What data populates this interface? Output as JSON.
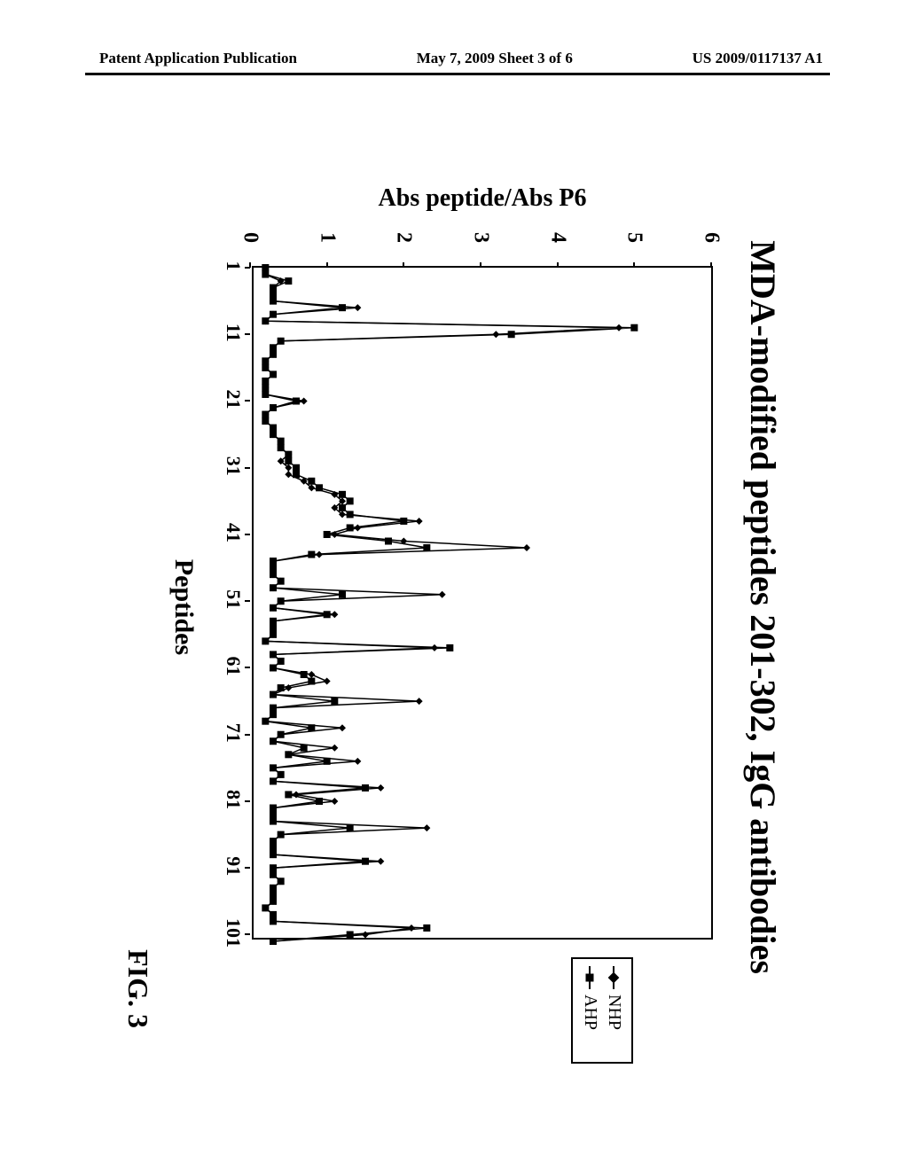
{
  "header": {
    "left": "Patent Application Publication",
    "center": "May 7, 2009  Sheet 3 of 6",
    "right": "US 2009/0117137 A1"
  },
  "figure_caption": "FIG. 3",
  "chart": {
    "type": "line",
    "title": "MDA-modified peptides 201-302, IgG antibodies",
    "x_axis": {
      "label": "Peptides",
      "ticks": [
        1,
        11,
        21,
        31,
        41,
        51,
        61,
        71,
        81,
        91,
        101
      ],
      "min": 1,
      "max": 102
    },
    "y_axis": {
      "label": "Abs peptide/Abs P6",
      "ticks": [
        0,
        1,
        2,
        3,
        4,
        5,
        6
      ],
      "min": 0,
      "max": 6
    },
    "background_color": "#ffffff",
    "axis_color": "#000000",
    "line_width": 1.5,
    "marker_size": 4,
    "legend": {
      "position": "right",
      "items": [
        {
          "label": "NHP",
          "marker": "diamond",
          "color": "#000000"
        },
        {
          "label": "AHP",
          "marker": "square",
          "color": "#000000"
        }
      ]
    },
    "series": [
      {
        "name": "NHP",
        "marker": "diamond",
        "color": "#000000",
        "values": [
          0.2,
          0.2,
          0.4,
          0.3,
          0.3,
          0.3,
          1.4,
          0.3,
          0.2,
          4.8,
          3.2,
          0.4,
          0.3,
          0.3,
          0.2,
          0.2,
          0.3,
          0.2,
          0.2,
          0.2,
          0.7,
          0.3,
          0.2,
          0.2,
          0.3,
          0.3,
          0.4,
          0.4,
          0.5,
          0.4,
          0.5,
          0.5,
          0.7,
          0.8,
          1.1,
          1.2,
          1.1,
          1.2,
          2.2,
          1.4,
          1.1,
          2.0,
          3.6,
          0.9,
          0.3,
          0.3,
          0.3,
          0.4,
          0.3,
          2.5,
          0.4,
          0.3,
          1.1,
          0.3,
          0.3,
          0.3,
          0.2,
          2.4,
          0.3,
          0.4,
          0.3,
          0.8,
          1.0,
          0.5,
          0.3,
          2.2,
          0.3,
          0.3,
          0.2,
          1.2,
          0.4,
          0.3,
          1.1,
          0.5,
          1.4,
          0.3,
          0.4,
          0.3,
          1.7,
          0.6,
          1.1,
          0.3,
          0.3,
          0.3,
          2.3,
          0.4,
          0.3,
          0.3,
          0.3,
          1.7,
          0.3,
          0.3,
          0.4,
          0.3,
          0.3,
          0.3,
          0.2,
          0.3,
          0.3,
          2.1,
          1.5,
          0.3
        ]
      },
      {
        "name": "AHP",
        "marker": "square",
        "color": "#000000",
        "values": [
          0.2,
          0.2,
          0.5,
          0.3,
          0.3,
          0.3,
          1.2,
          0.3,
          0.2,
          5.0,
          3.4,
          0.4,
          0.3,
          0.3,
          0.2,
          0.2,
          0.3,
          0.2,
          0.2,
          0.2,
          0.6,
          0.3,
          0.2,
          0.2,
          0.3,
          0.3,
          0.4,
          0.4,
          0.5,
          0.5,
          0.6,
          0.6,
          0.8,
          0.9,
          1.2,
          1.3,
          1.2,
          1.3,
          2.0,
          1.3,
          1.0,
          1.8,
          2.3,
          0.8,
          0.3,
          0.3,
          0.3,
          0.4,
          0.3,
          1.2,
          0.4,
          0.3,
          1.0,
          0.3,
          0.3,
          0.3,
          0.2,
          2.6,
          0.3,
          0.4,
          0.3,
          0.7,
          0.8,
          0.4,
          0.3,
          1.1,
          0.3,
          0.3,
          0.2,
          0.8,
          0.4,
          0.3,
          0.7,
          0.5,
          1.0,
          0.3,
          0.4,
          0.3,
          1.5,
          0.5,
          0.9,
          0.3,
          0.3,
          0.3,
          1.3,
          0.4,
          0.3,
          0.3,
          0.3,
          1.5,
          0.3,
          0.3,
          0.4,
          0.3,
          0.3,
          0.3,
          0.2,
          0.3,
          0.3,
          2.3,
          1.3,
          0.3
        ]
      }
    ]
  }
}
